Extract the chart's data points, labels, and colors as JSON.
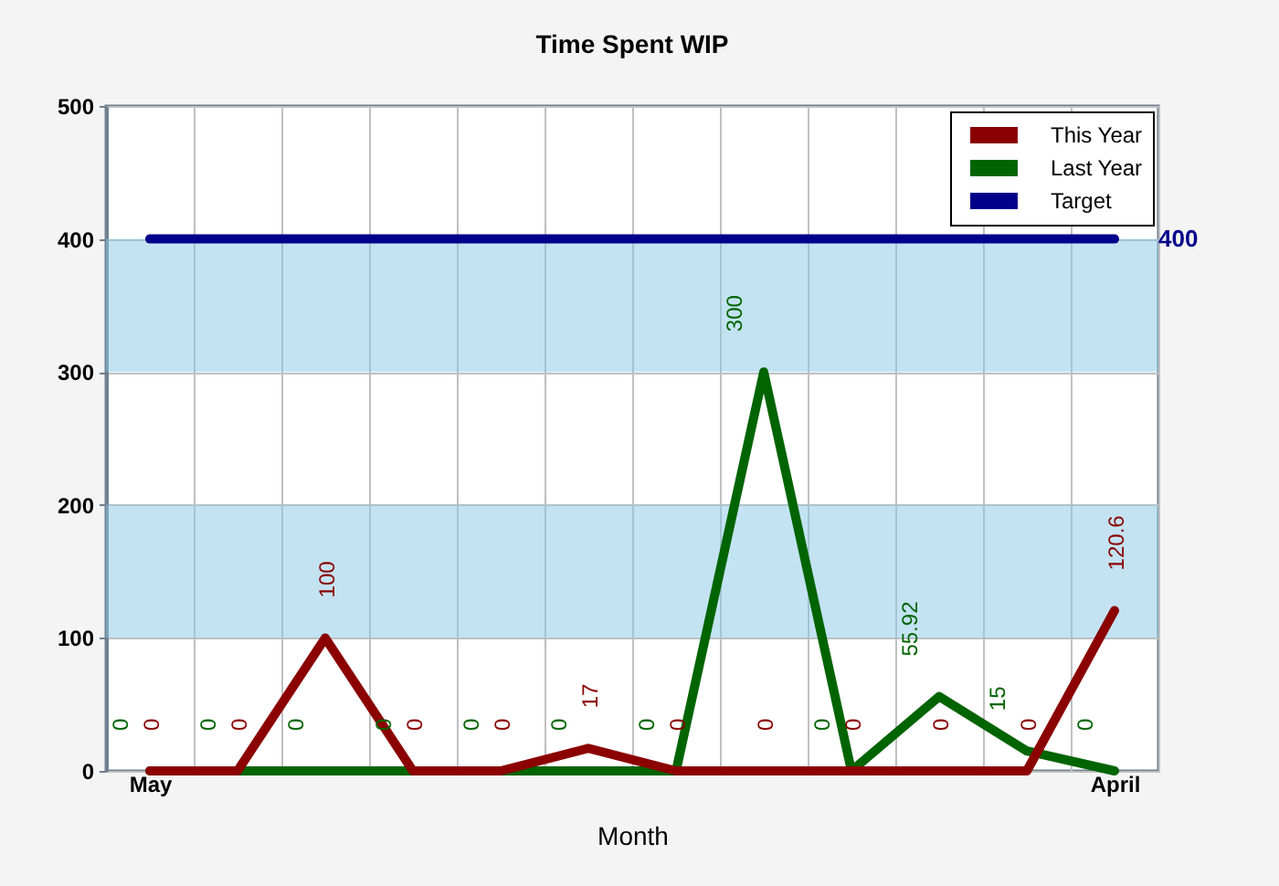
{
  "chart_data": {
    "type": "line",
    "title": "Time Spent WIP",
    "xlabel": "Month",
    "categories": [
      "May",
      null,
      null,
      null,
      null,
      null,
      null,
      null,
      null,
      null,
      null,
      "April"
    ],
    "series": [
      {
        "name": "This Year",
        "color": "#8b0000",
        "values": [
          0,
          0,
          100,
          0,
          0,
          17,
          0,
          0,
          0,
          0,
          0,
          120.6
        ]
      },
      {
        "name": "Last Year",
        "color": "#006400",
        "values": [
          0,
          0,
          0,
          0,
          0,
          0,
          0,
          300,
          0,
          55.92,
          15,
          0
        ]
      },
      {
        "name": "Target",
        "color": "#00008b",
        "values": [
          400,
          400,
          400,
          400,
          400,
          400,
          400,
          400,
          400,
          400,
          400,
          400
        ],
        "value_labels": [
          null,
          null,
          null,
          null,
          null,
          null,
          null,
          null,
          null,
          null,
          null,
          "400"
        ]
      }
    ],
    "ylim": [
      0,
      500
    ],
    "yticks": [
      0,
      100,
      200,
      300,
      400,
      500
    ],
    "bands": [
      {
        "axis": "y",
        "from": 100,
        "to": 200,
        "color": "#c3e3f2"
      },
      {
        "axis": "y",
        "from": 300,
        "to": 400,
        "color": "#c3e3f2"
      }
    ],
    "grid": true,
    "legend": "top right",
    "data_labels": true
  }
}
